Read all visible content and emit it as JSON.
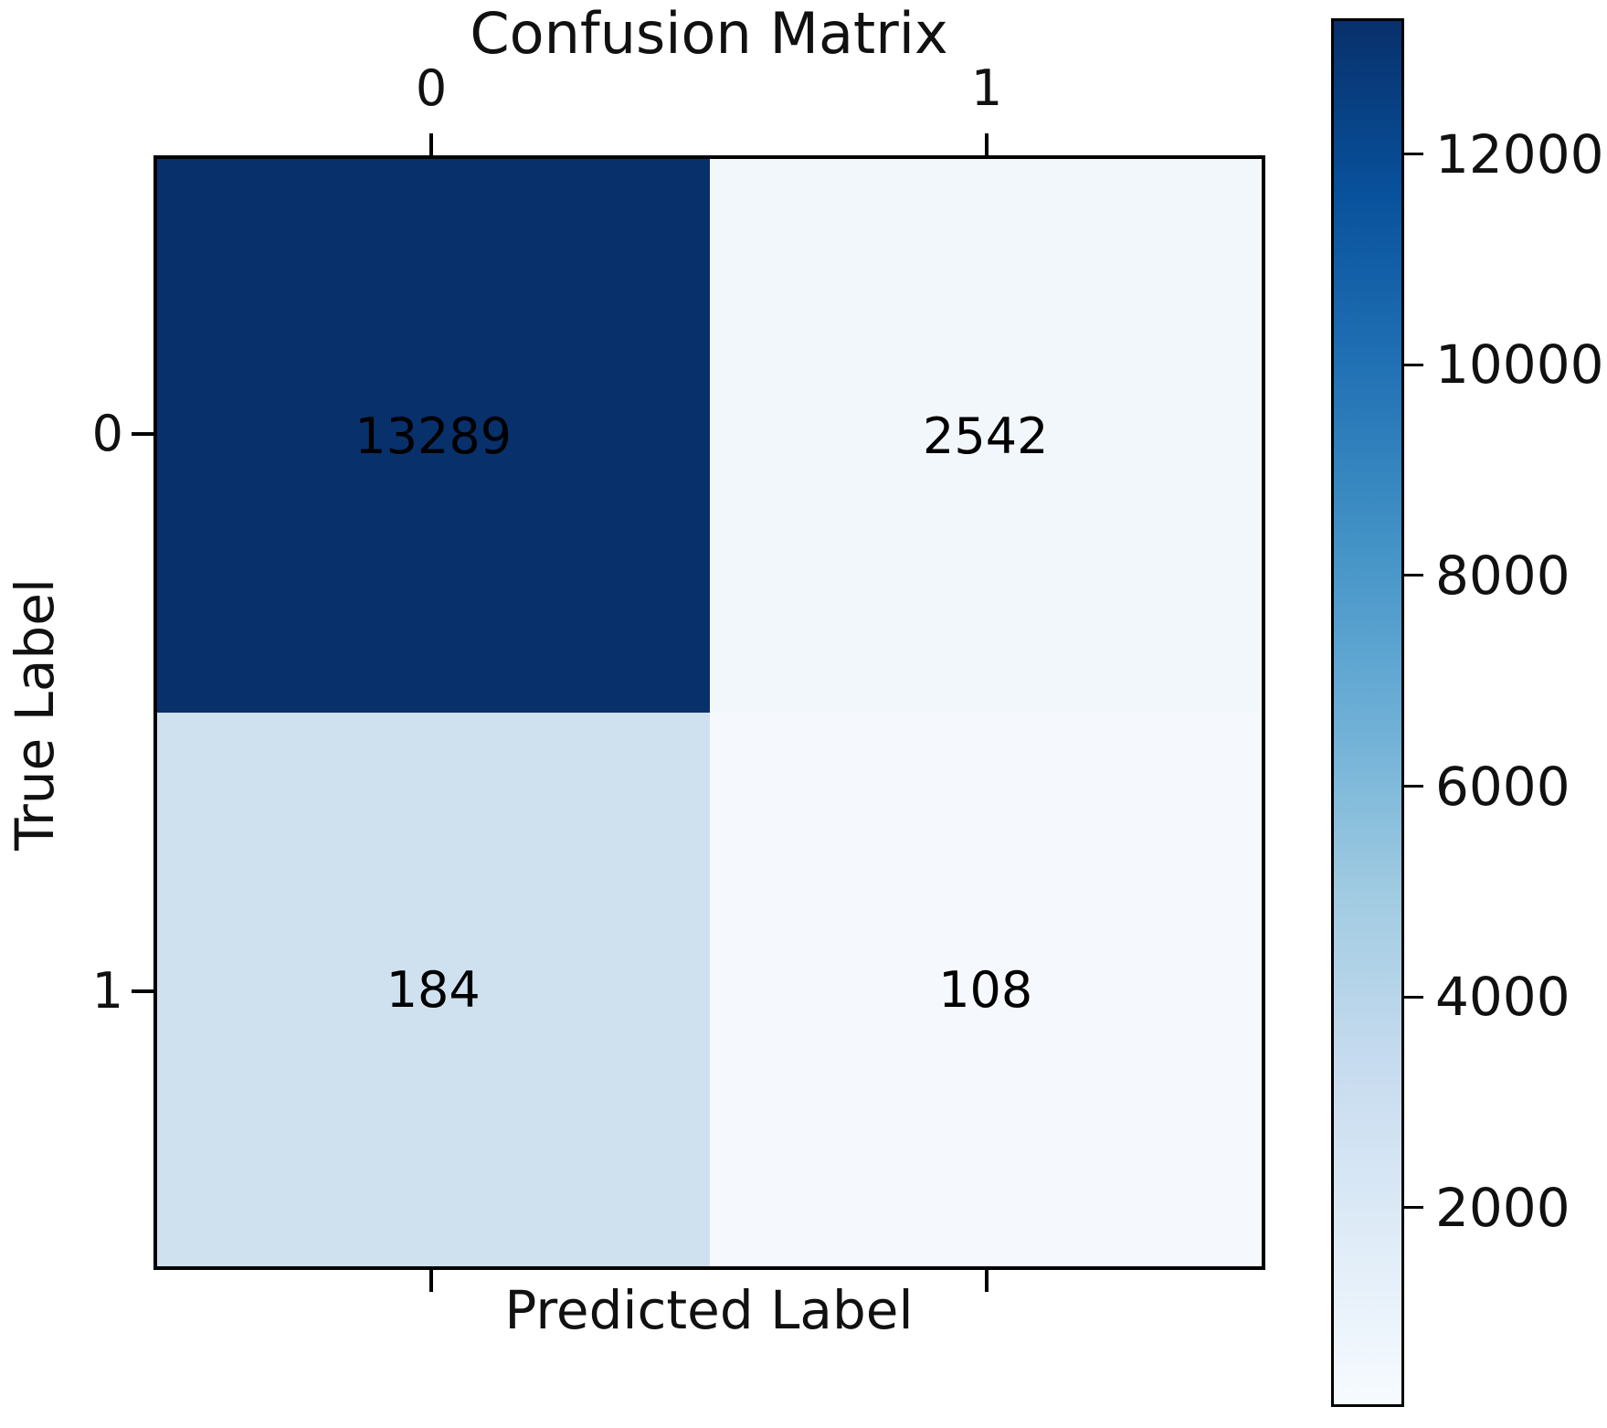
{
  "chart_data": {
    "type": "heatmap",
    "title": "Confusion Matrix",
    "xlabel": "Predicted Label",
    "ylabel": "True Label",
    "x_tick_labels": [
      "0",
      "1"
    ],
    "y_tick_labels": [
      "0",
      "1"
    ],
    "matrix": [
      [
        13289,
        2542
      ],
      [
        184,
        108
      ]
    ],
    "colormap": "Blues",
    "cell_colors": [
      [
        "#08306b",
        "#f2f7fc"
      ],
      [
        "#cfe1ef",
        "#f5f9fd"
      ]
    ],
    "cell_text_color": "#000000",
    "grid": false,
    "legend_position": "right-colorbar",
    "colorbar": {
      "ticks": [
        2000,
        4000,
        6000,
        8000,
        10000,
        12000
      ],
      "range": [
        108,
        13289
      ],
      "gradient_stops": [
        "#f7fbff",
        "#deebf7",
        "#c6dbef",
        "#9ecae1",
        "#6baed6",
        "#4292c6",
        "#2171b5",
        "#08519c",
        "#08306b"
      ]
    }
  }
}
